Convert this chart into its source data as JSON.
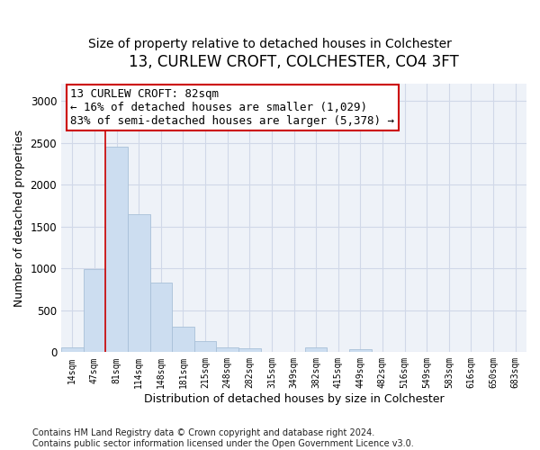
{
  "title": "13, CURLEW CROFT, COLCHESTER, CO4 3FT",
  "subtitle": "Size of property relative to detached houses in Colchester",
  "xlabel": "Distribution of detached houses by size in Colchester",
  "ylabel": "Number of detached properties",
  "bar_color": "#ccddf0",
  "bar_edge_color": "#a8c0d8",
  "background_color": "#eef2f8",
  "grid_color": "#d0d8e8",
  "categories": [
    "14sqm",
    "47sqm",
    "81sqm",
    "114sqm",
    "148sqm",
    "181sqm",
    "215sqm",
    "248sqm",
    "282sqm",
    "315sqm",
    "349sqm",
    "382sqm",
    "415sqm",
    "449sqm",
    "482sqm",
    "516sqm",
    "549sqm",
    "583sqm",
    "616sqm",
    "650sqm",
    "683sqm"
  ],
  "values": [
    60,
    990,
    2450,
    1650,
    830,
    300,
    130,
    55,
    50,
    0,
    0,
    55,
    0,
    40,
    0,
    0,
    0,
    0,
    0,
    0,
    0
  ],
  "ylim": [
    0,
    3200
  ],
  "yticks": [
    0,
    500,
    1000,
    1500,
    2000,
    2500,
    3000
  ],
  "red_line_x": 1.5,
  "annotation_text": "13 CURLEW CROFT: 82sqm\n← 16% of detached houses are smaller (1,029)\n83% of semi-detached houses are larger (5,378) →",
  "annotation_box_color": "#cc0000",
  "footer": "Contains HM Land Registry data © Crown copyright and database right 2024.\nContains public sector information licensed under the Open Government Licence v3.0.",
  "title_fontsize": 12,
  "subtitle_fontsize": 10,
  "xlabel_fontsize": 9,
  "ylabel_fontsize": 9,
  "annotation_fontsize": 9,
  "footer_fontsize": 7
}
